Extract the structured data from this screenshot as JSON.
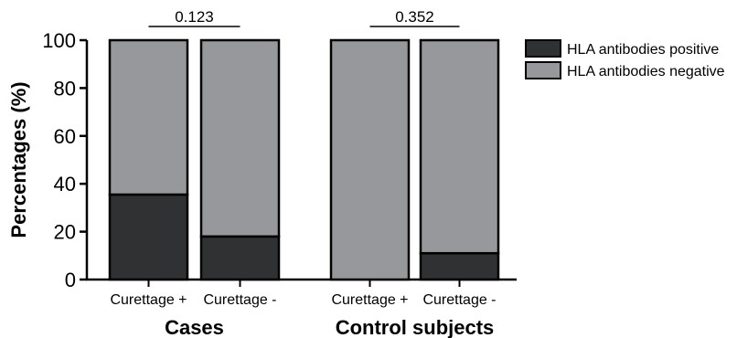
{
  "chart_data": {
    "type": "bar",
    "stacked": true,
    "ylabel": "Percentages (%)",
    "ylim": [
      0,
      100
    ],
    "yticks": [
      "0",
      "20",
      "40",
      "60",
      "80",
      "100"
    ],
    "categories": [
      "Curettage +",
      "Curettage -",
      "Curettage +",
      "Curettage -"
    ],
    "groups": [
      {
        "label": "Cases",
        "categories": [
          0,
          1
        ],
        "pvalue": "0.123"
      },
      {
        "label": "Control subjects",
        "categories": [
          2,
          3
        ],
        "pvalue": "0.352"
      }
    ],
    "series": [
      {
        "name": "HLA antibodies positive",
        "color": "#2f3133",
        "values": [
          35.5,
          18,
          0,
          11
        ]
      },
      {
        "name": "HLA antibodies negative",
        "color": "#97989b",
        "values": [
          64.5,
          82,
          100,
          89
        ]
      }
    ],
    "legend_position": "top-right",
    "grid": false
  }
}
